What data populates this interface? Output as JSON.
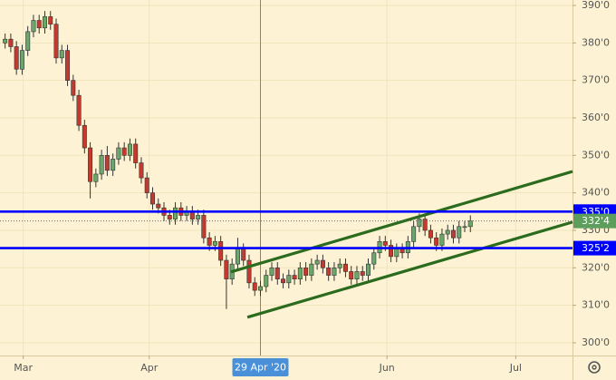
{
  "chart_data": {
    "type": "candlestick",
    "up_color": "#6aa86a",
    "down_color": "#c43a2e",
    "grid": true,
    "xlim": [
      -0.9,
      100
    ],
    "xticks": [
      {
        "value": 3.2,
        "label": "Mar"
      },
      {
        "value": 25.4,
        "label": "Apr"
      },
      {
        "value": 67.3,
        "label": "Jun"
      },
      {
        "value": 90,
        "label": "Jul"
      }
    ],
    "ylim": [
      296.6,
      391.45
    ],
    "yticks": [
      {
        "value": 300,
        "label": "300'0"
      },
      {
        "value": 310,
        "label": "310'0"
      },
      {
        "value": 320,
        "label": "320'0"
      },
      {
        "value": 330,
        "label": "330'0"
      },
      {
        "value": 340,
        "label": "340'0"
      },
      {
        "value": 350,
        "label": "350'0"
      },
      {
        "value": 360,
        "label": "360'0"
      },
      {
        "value": 370,
        "label": "370'0"
      },
      {
        "value": 380,
        "label": "380'0"
      },
      {
        "value": 390,
        "label": "390'0"
      }
    ],
    "open": [
      380,
      381,
      379,
      373,
      378,
      383,
      386,
      384,
      387,
      385,
      376,
      378,
      370,
      366,
      358,
      352,
      343,
      345,
      350,
      346,
      349,
      352,
      350,
      353,
      348,
      344,
      340,
      337,
      336,
      334,
      333,
      336,
      334,
      335,
      333,
      334,
      328,
      326,
      327,
      322,
      317,
      321,
      325,
      322,
      316,
      314,
      315,
      318,
      320,
      317,
      316,
      318,
      317,
      320,
      318,
      321,
      322,
      320,
      318,
      320,
      321,
      319,
      317,
      319,
      318,
      321,
      324,
      327,
      326,
      323,
      325,
      324,
      327,
      331,
      333,
      330,
      328,
      326,
      329,
      330,
      328,
      331,
      331
    ],
    "high": [
      382.5,
      382.5,
      380.5,
      379.5,
      384.5,
      387.5,
      387.5,
      388.5,
      388.5,
      386.5,
      379.5,
      379.5,
      371.5,
      367.5,
      359.5,
      353.5,
      346.5,
      351.5,
      352.5,
      350.5,
      353.5,
      353.5,
      354.5,
      354.5,
      349.5,
      345.5,
      341.5,
      338.5,
      337.5,
      335.5,
      337.5,
      337.5,
      336.5,
      336.5,
      335.5,
      335.5,
      329.5,
      328.5,
      328.5,
      323.5,
      322.5,
      328,
      326.5,
      323.5,
      317.5,
      316.5,
      319.5,
      321.5,
      321.5,
      318.5,
      319.5,
      319.5,
      321.5,
      321.5,
      322.5,
      323.5,
      323.5,
      321.5,
      321.5,
      322.5,
      322.5,
      320.5,
      320.5,
      320.5,
      322.5,
      325.5,
      328.5,
      328.5,
      327.5,
      326.5,
      326.5,
      328.5,
      332.5,
      334.5,
      334.5,
      331.5,
      329.5,
      330.5,
      331.5,
      331.5,
      332.5,
      332.5,
      334
    ],
    "low": [
      378.5,
      377.5,
      371.5,
      371.5,
      376.5,
      381.5,
      382.5,
      382.5,
      383.5,
      374.5,
      374.5,
      368.5,
      364.5,
      356.5,
      350.5,
      338.5,
      341.5,
      343.5,
      344.5,
      344.5,
      347.5,
      348.5,
      348.5,
      346.5,
      342.5,
      338.5,
      335.5,
      334.5,
      332.5,
      331.5,
      331.5,
      332.5,
      332.5,
      331.5,
      331.5,
      326.5,
      324.5,
      324.5,
      320.5,
      309,
      315.5,
      319.5,
      320.5,
      314.5,
      312.5,
      312.5,
      313.5,
      316.5,
      315.5,
      314.5,
      314.5,
      315.5,
      315.5,
      316.5,
      316.5,
      319.5,
      318.5,
      316.5,
      316.5,
      318.5,
      317.5,
      315.5,
      315.5,
      316.5,
      316.5,
      319.5,
      322.5,
      324.5,
      321.5,
      321.5,
      322.5,
      322.5,
      325.5,
      329.5,
      328.5,
      326.5,
      324.5,
      324.5,
      327.5,
      326.5,
      326.5,
      329.5,
      329.5
    ],
    "close": [
      381,
      379,
      373,
      378,
      383,
      386,
      384,
      387,
      385,
      376,
      378,
      370,
      366,
      358,
      352,
      343,
      345,
      350,
      346,
      349,
      352,
      350,
      353,
      348,
      344,
      340,
      337,
      336,
      334,
      333,
      336,
      334,
      335,
      333,
      334,
      328,
      326,
      327,
      322,
      317,
      321,
      325,
      322,
      316,
      314,
      315,
      318,
      320,
      317,
      316,
      318,
      317,
      320,
      318,
      321,
      322,
      320,
      318,
      320,
      321,
      319,
      317,
      319,
      318,
      321,
      324,
      327,
      326,
      323,
      325,
      324,
      327,
      331,
      333,
      330,
      328,
      326,
      329,
      330,
      328,
      331,
      331,
      332.5
    ],
    "hlines": [
      {
        "value": 335,
        "label": "335'0",
        "color": "#0000ff"
      },
      {
        "value": 325.25,
        "label": "325'2",
        "color": "#0000ff"
      }
    ],
    "last_price": {
      "value": 332.5,
      "label": "332'4",
      "color": "#5d9e5d"
    },
    "trend_lines": [
      {
        "color": "#2b6b1e",
        "points": [
          [
            39.8,
            318.9
          ],
          [
            100,
            345.7
          ]
        ]
      },
      {
        "color": "#2b6b1e",
        "points": [
          [
            42.7,
            306.8
          ],
          [
            100,
            332.2
          ]
        ]
      }
    ],
    "crosshair": {
      "x": 45,
      "label": "29 Apr '20",
      "color": "#4a90d9"
    }
  }
}
